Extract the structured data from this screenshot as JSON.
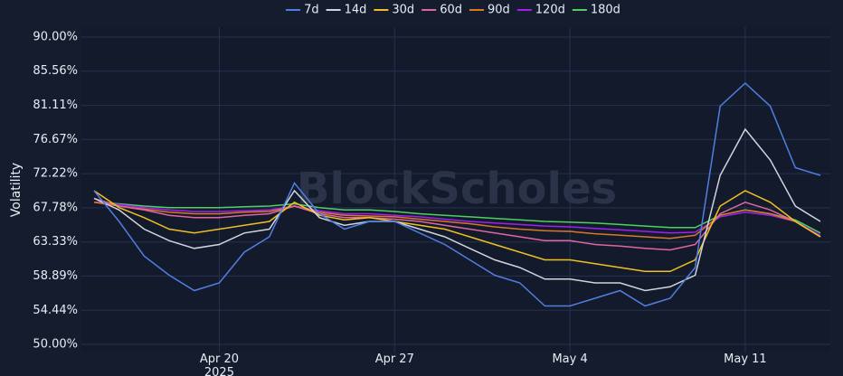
{
  "chart_data": {
    "type": "line",
    "watermark": "BlockScholes",
    "y_label": "Volatility",
    "x": [
      "2025-04-15",
      "2025-04-16",
      "2025-04-17",
      "2025-04-18",
      "2025-04-19",
      "2025-04-20",
      "2025-04-21",
      "2025-04-22",
      "2025-04-23",
      "2025-04-24",
      "2025-04-25",
      "2025-04-26",
      "2025-04-27",
      "2025-04-28",
      "2025-04-29",
      "2025-04-30",
      "2025-05-01",
      "2025-05-02",
      "2025-05-03",
      "2025-05-04",
      "2025-05-05",
      "2025-05-06",
      "2025-05-07",
      "2025-05-08",
      "2025-05-09",
      "2025-05-10",
      "2025-05-11",
      "2025-05-12",
      "2025-05-13",
      "2025-05-14"
    ],
    "xlim": [
      "2025-04-15",
      "2025-05-14"
    ],
    "xticks": [
      {
        "value": "2025-04-20",
        "label": "Apr 20\n2025"
      },
      {
        "value": "2025-04-27",
        "label": "Apr 27"
      },
      {
        "value": "2025-05-04",
        "label": "May 4"
      },
      {
        "value": "2025-05-11",
        "label": "May 11"
      }
    ],
    "ylim": [
      50,
      90
    ],
    "yticks": [
      {
        "value": 50,
        "label": "50.00%"
      },
      {
        "value": 54.44,
        "label": "54.44%"
      },
      {
        "value": 58.89,
        "label": "58.89%"
      },
      {
        "value": 63.33,
        "label": "63.33%"
      },
      {
        "value": 67.78,
        "label": "67.78%"
      },
      {
        "value": 72.22,
        "label": "72.22%"
      },
      {
        "value": 76.67,
        "label": "76.67%"
      },
      {
        "value": 81.11,
        "label": "81.11%"
      },
      {
        "value": 85.56,
        "label": "85.56%"
      },
      {
        "value": 90,
        "label": "90.00%"
      }
    ],
    "grid": true,
    "series": [
      {
        "name": "7d",
        "color": "#4f7fe0",
        "values": [
          70,
          66,
          61.5,
          59,
          57,
          58,
          62,
          64,
          71,
          67,
          65,
          66,
          66,
          64.5,
          63,
          61,
          59,
          58,
          55,
          55,
          56,
          57,
          55,
          56,
          60,
          81,
          84,
          81,
          73,
          72
        ]
      },
      {
        "name": "14d",
        "color": "#d0d4dc",
        "values": [
          69,
          67.5,
          65,
          63.5,
          62.5,
          63,
          64.5,
          65,
          70,
          66.5,
          65.5,
          66,
          66,
          65,
          64,
          62.5,
          61,
          60,
          58.5,
          58.5,
          58,
          58,
          57,
          57.5,
          59,
          72,
          78,
          74,
          68,
          66
        ]
      },
      {
        "name": "30d",
        "color": "#f0c020",
        "values": [
          70,
          67.8,
          66.5,
          65,
          64.5,
          65,
          65.5,
          66,
          68.5,
          66.8,
          66.2,
          66.5,
          66,
          65.5,
          65,
          64,
          63,
          62,
          61,
          61,
          60.5,
          60,
          59.5,
          59.5,
          61,
          68,
          70,
          68.5,
          66,
          64
        ]
      },
      {
        "name": "60d",
        "color": "#e066a0",
        "values": [
          69,
          68,
          67.5,
          66.8,
          66.5,
          66.5,
          66.8,
          67,
          68,
          67,
          66.5,
          66.5,
          66.3,
          66,
          65.5,
          65,
          64.5,
          64,
          63.5,
          63.5,
          63,
          62.8,
          62.5,
          62.3,
          63,
          67,
          68.5,
          67.5,
          66,
          64
        ]
      },
      {
        "name": "90d",
        "color": "#d9782a",
        "values": [
          68.5,
          68,
          67.6,
          67.2,
          67,
          67,
          67.2,
          67.3,
          68,
          67.2,
          66.8,
          66.7,
          66.6,
          66.3,
          66,
          65.7,
          65.3,
          65,
          64.8,
          64.7,
          64.4,
          64.2,
          64,
          63.8,
          64.2,
          66.8,
          67.5,
          67,
          66,
          64
        ]
      },
      {
        "name": "120d",
        "color": "#a020f0",
        "values": [
          68.5,
          68.2,
          67.8,
          67.5,
          67.3,
          67.3,
          67.4,
          67.5,
          68,
          67.4,
          67,
          67,
          66.8,
          66.6,
          66.3,
          66,
          65.8,
          65.6,
          65.4,
          65.3,
          65.1,
          64.9,
          64.7,
          64.5,
          64.6,
          66.6,
          67.2,
          66.8,
          66,
          64.2
        ]
      },
      {
        "name": "180d",
        "color": "#4fd060",
        "values": [
          68.5,
          68.3,
          68,
          67.8,
          67.8,
          67.8,
          67.9,
          68,
          68.3,
          67.8,
          67.5,
          67.5,
          67.3,
          67,
          66.8,
          66.6,
          66.4,
          66.2,
          66,
          65.9,
          65.8,
          65.6,
          65.4,
          65.2,
          65.2,
          66.8,
          67.5,
          67,
          66.2,
          64.5
        ]
      }
    ]
  }
}
